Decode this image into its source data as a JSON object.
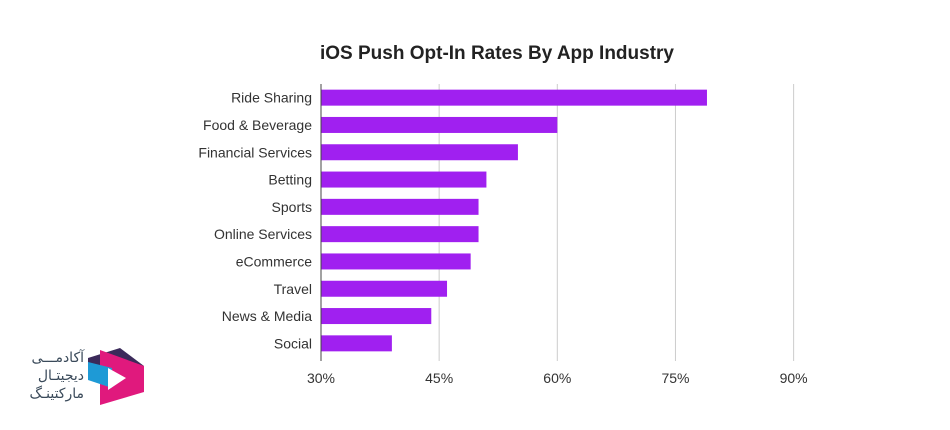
{
  "chart_data": {
    "type": "bar",
    "orientation": "horizontal",
    "title": "iOS Push Opt-In Rates By App Industry",
    "xlabel": "",
    "ylabel": "",
    "categories": [
      "Ride Sharing",
      "Food & Beverage",
      "Financial Services",
      "Betting",
      "Sports",
      "Online Services",
      "eCommerce",
      "Travel",
      "News & Media",
      "Social"
    ],
    "values": [
      79,
      60,
      55,
      51,
      50,
      50,
      49,
      46,
      44,
      39
    ],
    "xlim": [
      30,
      95
    ],
    "xticks": [
      30,
      45,
      60,
      75,
      90
    ],
    "xtick_labels": [
      "30%",
      "45%",
      "60%",
      "75%",
      "90%"
    ],
    "bar_color": "#a020f0",
    "grid": "vertical"
  },
  "logo": {
    "lines": [
      "آکادمـــی",
      "دیجیتـال",
      "مارکتینـگ"
    ],
    "colors": {
      "magenta": "#e0197d",
      "blue": "#1e9ad6",
      "dark": "#3b2a5a"
    }
  }
}
